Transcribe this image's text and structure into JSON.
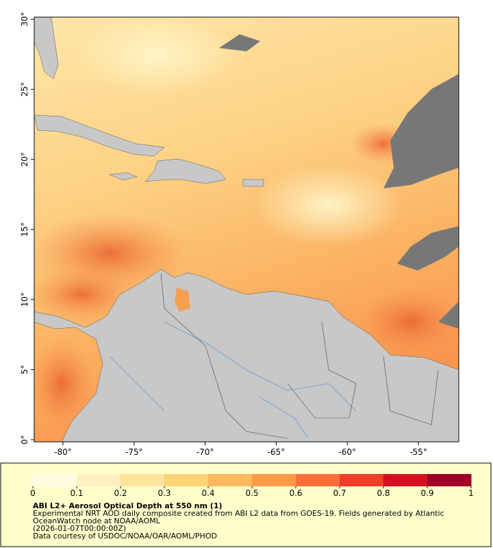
{
  "map": {
    "xlim": [
      -82.02,
      -52.16
    ],
    "ylim": [
      -0.15,
      30.15
    ],
    "xticks": [
      {
        "value": -80,
        "label": "-80°"
      },
      {
        "value": -75,
        "label": "-75°"
      },
      {
        "value": -70,
        "label": "-70°"
      },
      {
        "value": -65,
        "label": "-65°"
      },
      {
        "value": -60,
        "label": "-60°"
      },
      {
        "value": -55,
        "label": "-55°"
      }
    ],
    "yticks": [
      {
        "value": 0,
        "label": "0°"
      },
      {
        "value": 5,
        "label": "5°"
      },
      {
        "value": 10,
        "label": "10°"
      },
      {
        "value": 15,
        "label": "15°"
      },
      {
        "value": 20,
        "label": "20°"
      },
      {
        "value": 25,
        "label": "25°"
      },
      {
        "value": 30,
        "label": "30°"
      }
    ],
    "colorbar": {
      "lim": [
        0,
        1
      ],
      "ticks": [
        0,
        0.1,
        0.2,
        0.3,
        0.4,
        0.5,
        0.6,
        0.7,
        0.8,
        0.9,
        1
      ],
      "colors": [
        "#fffbe0",
        "#fff0c0",
        "#fee39a",
        "#fed276",
        "#feb85c",
        "#fd9a4a",
        "#fc6d3a",
        "#f03e2a",
        "#d41020",
        "#9e0026"
      ]
    },
    "title": "ABI L2+ Aerosol Optical Depth at 550 nm (1)",
    "caption": [
      "Experimental NRT AOD daily composite created from ABI L2 data from GOES-19. Fields generated by Atlantic",
      "OceanWatch node at NOAA/AOML",
      "(2026-01-07T00:00:00Z)",
      "Data courtesy of USDOC/NOAA/OAR/AOML/PHOD"
    ]
  }
}
